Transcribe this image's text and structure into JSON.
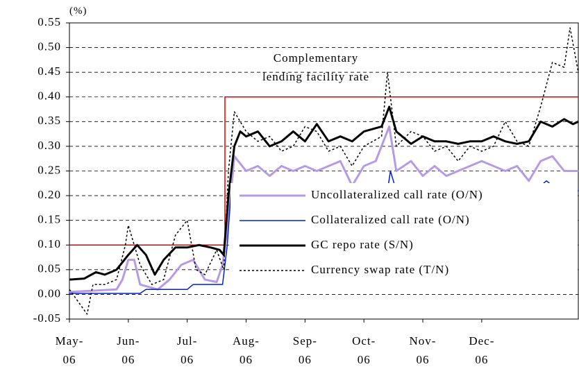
{
  "chart_data": {
    "type": "line",
    "unit_label": "(%)",
    "annotation": "Complementary\nlending facility rate",
    "xlim": [
      0,
      8.64
    ],
    "xticks": [
      {
        "value": 0,
        "label": "May-\n06"
      },
      {
        "value": 1,
        "label": "Jun-\n06"
      },
      {
        "value": 2,
        "label": "Jul-\n06"
      },
      {
        "value": 3,
        "label": "Aug-\n06"
      },
      {
        "value": 4,
        "label": "Sep-\n06"
      },
      {
        "value": 5,
        "label": "Oct-\n06"
      },
      {
        "value": 6,
        "label": "Nov-\n06"
      },
      {
        "value": 7,
        "label": "Dec-\n06"
      }
    ],
    "ylim": [
      -0.05,
      0.55
    ],
    "yticks": [
      {
        "value": -0.05,
        "label": "-0.05"
      },
      {
        "value": 0,
        "label": "0.00"
      },
      {
        "value": 0.05,
        "label": "0.05"
      },
      {
        "value": 0.1,
        "label": "0.10"
      },
      {
        "value": 0.15,
        "label": "0.15"
      },
      {
        "value": 0.2,
        "label": "0.20"
      },
      {
        "value": 0.25,
        "label": "0.25"
      },
      {
        "value": 0.3,
        "label": "0.30"
      },
      {
        "value": 0.35,
        "label": "0.35"
      },
      {
        "value": 0.4,
        "label": "0.40"
      },
      {
        "value": 0.45,
        "label": "0.45"
      },
      {
        "value": 0.5,
        "label": "0.50"
      },
      {
        "value": 0.55,
        "label": "0.55"
      }
    ],
    "grid": true,
    "series": [
      {
        "color": "#e00000",
        "width": 1.5,
        "dash": "none",
        "x": [
          0,
          2.64,
          2.64,
          8.64
        ],
        "values": [
          0.1,
          0.1,
          0.4,
          0.4
        ]
      },
      {
        "name": "Uncollateralized call rate (O/N)",
        "color": "#b69ae6",
        "width": 3,
        "dash": "none",
        "x": [
          0,
          0.8,
          0.9,
          1.0,
          1.1,
          1.2,
          1.5,
          1.7,
          1.9,
          2.1,
          2.3,
          2.5,
          2.6,
          2.7,
          2.8,
          3.0,
          3.2,
          3.4,
          3.6,
          3.8,
          4.0,
          4.2,
          4.4,
          4.6,
          4.8,
          5.0,
          5.2,
          5.43,
          5.55,
          5.8,
          6.0,
          6.2,
          6.4,
          6.6,
          6.8,
          7.0,
          7.2,
          7.4,
          7.6,
          7.8,
          8.0,
          8.2,
          8.4,
          8.64
        ],
        "values": [
          0.005,
          0.01,
          0.03,
          0.07,
          0.07,
          0.02,
          0.01,
          0.03,
          0.06,
          0.07,
          0.03,
          0.025,
          0.06,
          0.15,
          0.28,
          0.25,
          0.26,
          0.24,
          0.26,
          0.25,
          0.26,
          0.25,
          0.26,
          0.27,
          0.22,
          0.26,
          0.27,
          0.34,
          0.25,
          0.27,
          0.24,
          0.26,
          0.24,
          0.25,
          0.26,
          0.27,
          0.26,
          0.25,
          0.26,
          0.23,
          0.27,
          0.28,
          0.25,
          0.25
        ]
      },
      {
        "name": "Collateralized call rate (O/N)",
        "color": "#0020d0",
        "width": 1.5,
        "dash": "none",
        "x": [
          0,
          1.2,
          1.3,
          2.0,
          2.1,
          2.6,
          2.68,
          2.75,
          2.85,
          2.9,
          3.1,
          3.5,
          4.0,
          4.5,
          5.0,
          5.4,
          5.45,
          5.55,
          6.0,
          7.0,
          7.5,
          7.7,
          8.0,
          8.1,
          8.3,
          8.64
        ],
        "values": [
          0.002,
          0.002,
          0.01,
          0.01,
          0.02,
          0.02,
          0.1,
          0.22,
          0.22,
          0.2,
          0.21,
          0.21,
          0.21,
          0.21,
          0.21,
          0.21,
          0.25,
          0.21,
          0.21,
          0.21,
          0.21,
          0.22,
          0.22,
          0.23,
          0.21,
          0.21
        ]
      },
      {
        "name": "GC repo rate (S/N)",
        "color": "#000000",
        "width": 3,
        "dash": "none",
        "x": [
          0,
          0.25,
          0.45,
          0.6,
          0.8,
          1.0,
          1.15,
          1.3,
          1.45,
          1.6,
          1.8,
          2.0,
          2.2,
          2.4,
          2.55,
          2.62,
          2.7,
          2.8,
          2.9,
          3.0,
          3.2,
          3.4,
          3.6,
          3.8,
          4.0,
          4.2,
          4.4,
          4.6,
          4.8,
          5.0,
          5.3,
          5.43,
          5.55,
          5.8,
          6.0,
          6.2,
          6.4,
          6.6,
          6.8,
          7.0,
          7.2,
          7.4,
          7.6,
          7.8,
          8.0,
          8.2,
          8.4,
          8.55,
          8.64
        ],
        "values": [
          0.03,
          0.032,
          0.045,
          0.04,
          0.05,
          0.08,
          0.1,
          0.08,
          0.04,
          0.07,
          0.095,
          0.095,
          0.1,
          0.095,
          0.09,
          0.08,
          0.2,
          0.3,
          0.33,
          0.32,
          0.33,
          0.3,
          0.31,
          0.33,
          0.31,
          0.345,
          0.31,
          0.32,
          0.31,
          0.33,
          0.34,
          0.38,
          0.33,
          0.305,
          0.32,
          0.31,
          0.31,
          0.305,
          0.31,
          0.31,
          0.32,
          0.31,
          0.305,
          0.31,
          0.35,
          0.34,
          0.355,
          0.345,
          0.35
        ]
      },
      {
        "name": "Currency swap rate (T/N)",
        "color": "#000000",
        "width": 1.5,
        "dash": "3 3",
        "x": [
          0,
          0.3,
          0.4,
          0.6,
          0.8,
          0.95,
          1.0,
          1.2,
          1.4,
          1.6,
          1.8,
          2.0,
          2.15,
          2.3,
          2.5,
          2.62,
          2.7,
          2.8,
          3.0,
          3.2,
          3.4,
          3.6,
          3.8,
          4.0,
          4.2,
          4.4,
          4.6,
          4.8,
          5.0,
          5.3,
          5.4,
          5.55,
          5.8,
          6.0,
          6.2,
          6.4,
          6.6,
          6.8,
          7.0,
          7.2,
          7.4,
          7.6,
          7.8,
          8.0,
          8.2,
          8.4,
          8.5,
          8.64
        ],
        "values": [
          0.01,
          -0.04,
          0.02,
          0.02,
          0.03,
          0.1,
          0.14,
          0.06,
          0.02,
          0.03,
          0.12,
          0.15,
          0.05,
          0.04,
          0.09,
          0.05,
          0.25,
          0.37,
          0.33,
          0.31,
          0.32,
          0.29,
          0.3,
          0.34,
          0.33,
          0.29,
          0.3,
          0.26,
          0.3,
          0.32,
          0.45,
          0.3,
          0.33,
          0.32,
          0.29,
          0.3,
          0.27,
          0.3,
          0.29,
          0.3,
          0.35,
          0.31,
          0.3,
          0.38,
          0.47,
          0.46,
          0.54,
          0.45
        ]
      }
    ]
  }
}
